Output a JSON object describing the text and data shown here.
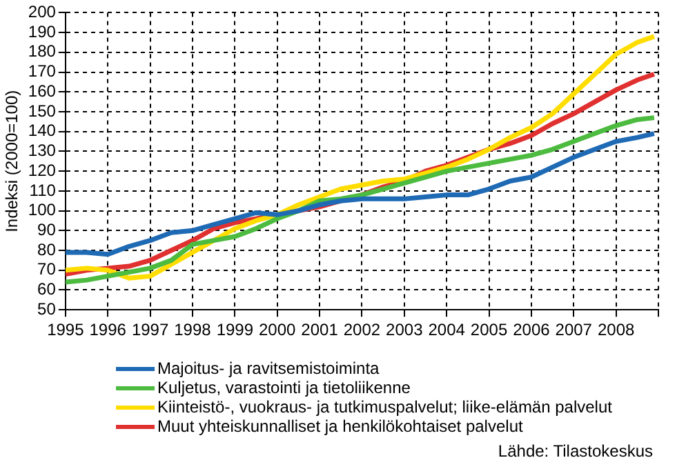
{
  "chart_data": {
    "type": "line",
    "ylabel": "Indeksi (2000=100)",
    "x": [
      1995,
      1995.5,
      1996,
      1996.5,
      1997,
      1997.5,
      1998,
      1998.5,
      1999,
      1999.5,
      2000,
      2000.5,
      2001,
      2001.5,
      2002,
      2002.5,
      2003,
      2003.5,
      2004,
      2004.5,
      2005,
      2005.5,
      2006,
      2006.5,
      2007,
      2007.5,
      2008,
      2008.5,
      2008.9
    ],
    "series": [
      {
        "name": "Majoitus- ja ravitsemistoiminta",
        "color": "#1f6ab4",
        "values": [
          79,
          79,
          78,
          82,
          85,
          89,
          90,
          93,
          96,
          99,
          98,
          100,
          103,
          105,
          106,
          106,
          106,
          107,
          108,
          108,
          111,
          115,
          117,
          122,
          127,
          131,
          135,
          137,
          139
        ]
      },
      {
        "name": "Kuljetus, varastointi ja tietoliikenne",
        "color": "#4cbb3f",
        "values": [
          64,
          65,
          67,
          69,
          71,
          75,
          83,
          85,
          87,
          91,
          96,
          100,
          105,
          106,
          108,
          111,
          114,
          117,
          120,
          122,
          124,
          126,
          128,
          131,
          135,
          139,
          143,
          146,
          147
        ]
      },
      {
        "name": "Kiinteistö-, vuokraus- ja tutkimuspalvelut; liike-elämän palvelut",
        "color": "#ffdd00",
        "values": [
          70,
          71,
          70,
          66,
          67,
          73,
          79,
          85,
          91,
          95,
          98,
          103,
          107,
          111,
          113,
          115,
          116,
          119,
          122,
          126,
          131,
          137,
          142,
          149,
          159,
          169,
          179,
          185,
          188
        ]
      },
      {
        "name": "Muut yhteiskunnalliset ja henkilökohtaiset palvelut",
        "color": "#e03030",
        "values": [
          68,
          70,
          71,
          72,
          75,
          80,
          85,
          91,
          94,
          96,
          98,
          100,
          102,
          105,
          108,
          112,
          115,
          120,
          123,
          127,
          131,
          134,
          138,
          144,
          149,
          155,
          161,
          166,
          169
        ]
      }
    ],
    "xlim": [
      1995,
      2009
    ],
    "xticks": [
      1995,
      1996,
      1997,
      1998,
      1999,
      2000,
      2001,
      2002,
      2003,
      2004,
      2005,
      2006,
      2007,
      2008,
      {
        "value": 2009,
        "label": null
      }
    ],
    "ylim": [
      50,
      200
    ],
    "yticks": [
      50,
      60,
      70,
      80,
      90,
      100,
      110,
      120,
      130,
      140,
      150,
      160,
      170,
      180,
      190,
      200
    ],
    "grid": true,
    "legend": "bottom",
    "marker": "none",
    "line_style": "solid",
    "annotations": [
      "Lähde: Tilastokeskus"
    ]
  }
}
